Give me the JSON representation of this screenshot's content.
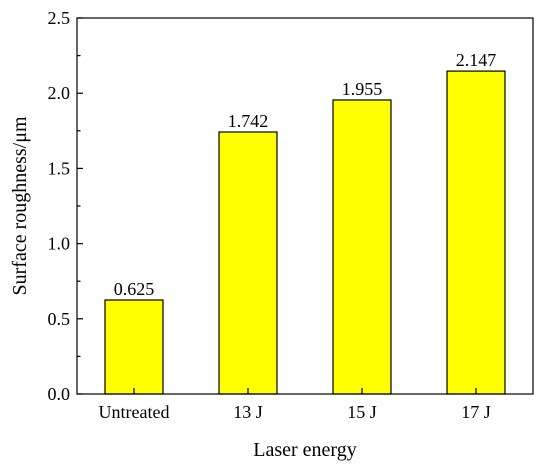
{
  "chart_data": {
    "type": "bar",
    "categories": [
      "Untreated",
      "13 J",
      "15 J",
      "17 J"
    ],
    "values": [
      0.625,
      1.742,
      1.955,
      2.147
    ],
    "value_labels": [
      "0.625",
      "1.742",
      "1.955",
      "2.147"
    ],
    "title": "",
    "xlabel": "Laser energy",
    "ylabel": "Surface roughness/μm",
    "ylim": [
      0,
      2.5
    ],
    "yticks": [
      "0.0",
      "0.5",
      "1.0",
      "1.5",
      "2.0",
      "2.5"
    ],
    "ytick_values": [
      0,
      0.5,
      1.0,
      1.5,
      2.0,
      2.5
    ],
    "grid": false,
    "legend": "none",
    "bar_color": "#ffff00",
    "bar_edge_color": "#000000"
  }
}
